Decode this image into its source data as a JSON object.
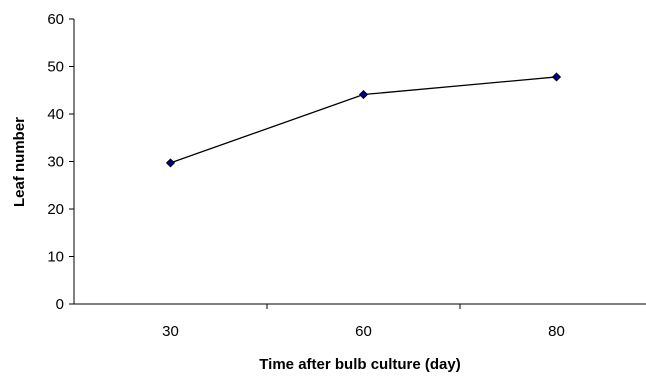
{
  "chart_data": {
    "type": "line",
    "categories": [
      "30",
      "60",
      "80"
    ],
    "series": [
      {
        "values": [
          29.7,
          44.1,
          47.8
        ],
        "color": "#000000",
        "marker_color": "#000080"
      }
    ],
    "xlabel": "Time after bulb culture (day)",
    "ylabel": "Leaf number",
    "ylim": [
      0,
      60
    ],
    "yticks": [
      "0",
      "10",
      "20",
      "30",
      "40",
      "50",
      "60"
    ],
    "grid": false,
    "legend": "none"
  }
}
